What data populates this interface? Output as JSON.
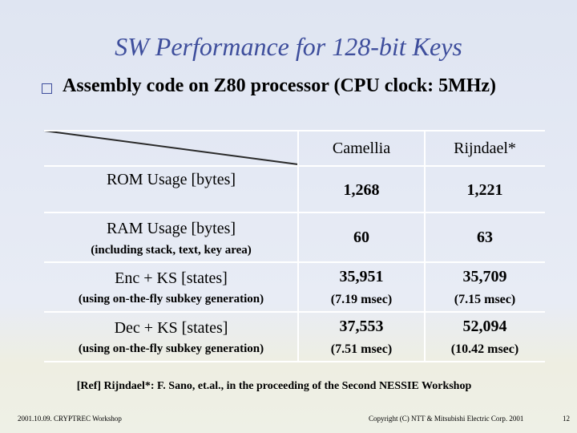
{
  "slide": {
    "title": "SW Performance for 128-bit Keys",
    "bullet": "Assembly code on Z80 processor (CPU clock: 5MHz)"
  },
  "table": {
    "columns": [
      "Camellia",
      "Rijndael*"
    ],
    "rows": [
      {
        "label": "ROM Usage [bytes]",
        "sublabel": "",
        "values": [
          "1,268",
          "1,221"
        ],
        "times": [
          "",
          ""
        ]
      },
      {
        "label": "RAM Usage [bytes]",
        "sublabel": "(including stack, text, key area)",
        "values": [
          "60",
          "63"
        ],
        "times": [
          "",
          ""
        ]
      },
      {
        "label": "Enc + KS [states]",
        "sublabel": "(using on-the-fly subkey generation)",
        "values": [
          "35,951",
          "35,709"
        ],
        "times": [
          "(7.19 msec)",
          "(7.15 msec)"
        ]
      },
      {
        "label": "Dec + KS [states]",
        "sublabel": "(using on-the-fly subkey generation)",
        "values": [
          "37,553",
          "52,094"
        ],
        "times": [
          "(7.51 msec)",
          "(10.42 msec)"
        ]
      }
    ]
  },
  "reference": "[Ref] Rijndael*: F. Sano, et.al., in the proceeding of the Second NESSIE Workshop",
  "footer": {
    "left": "2001.10.09. CRYPTREC Workshop",
    "right": "Copyright (C) NTT & Mitsubishi Electric Corp. 2001",
    "page": "12"
  },
  "colors": {
    "title": "#3e4e9c",
    "table_lines": "#ffffff",
    "diagonal": "#2a2a2a"
  }
}
